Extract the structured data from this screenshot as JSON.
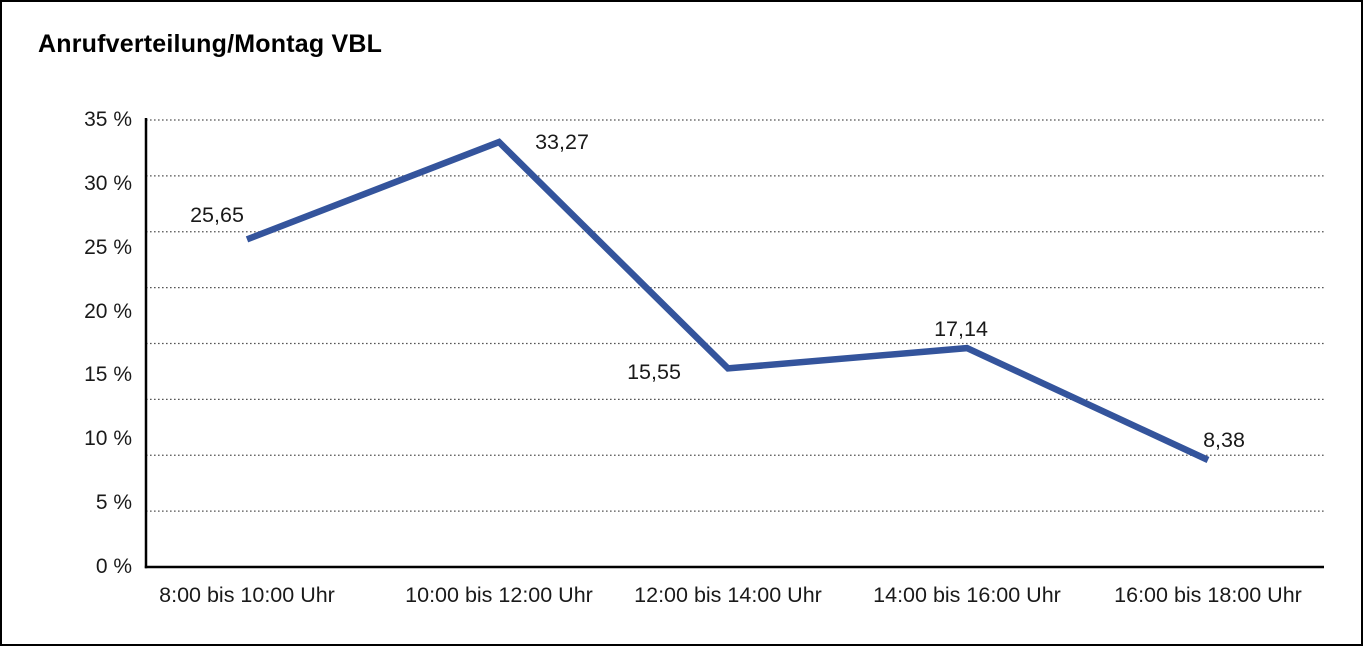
{
  "window": {
    "background": "#ffffff",
    "border_color": "#000000"
  },
  "chart_data": {
    "type": "line",
    "title": "Anrufverteilung/Montag VBL",
    "categories": [
      "8:00 bis 10:00 Uhr",
      "10:00 bis 12:00 Uhr",
      "12:00 bis 14:00 Uhr",
      "14:00 bis 16:00 Uhr",
      "16:00 bis 18:00 Uhr"
    ],
    "series": [
      {
        "name": "Anrufverteilung Montag VBL",
        "values": [
          25.65,
          33.27,
          15.55,
          17.14,
          8.38
        ],
        "value_labels": [
          "25,65",
          "33,27",
          "15,55",
          "17,14",
          "8,38"
        ]
      }
    ],
    "xlabel": "",
    "ylabel": "",
    "y_tick_labels": [
      "35 %",
      "30 %",
      "25 %",
      "20 %",
      "15 %",
      "10 %",
      "5 %",
      "0 %"
    ],
    "ylim": [
      0,
      35
    ],
    "grid": "horizontal-dotted",
    "legend": "none",
    "line_color": "#34549C",
    "axis_color": "#000000",
    "grid_color": "#555555",
    "text_color": "#1a1a1a"
  }
}
